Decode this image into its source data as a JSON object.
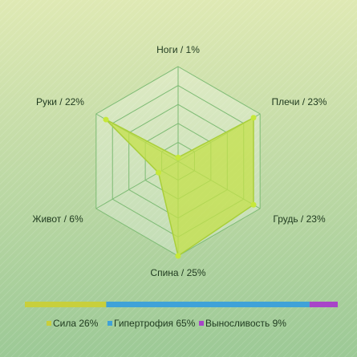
{
  "chart_data": [
    {
      "type": "radar",
      "categories": [
        "Ноги / 1%",
        "Плечи / 23%",
        "Грудь / 23%",
        "Спина / 25%",
        "Живот / 6%",
        "Руки / 22%"
      ],
      "values": [
        1,
        23,
        23,
        25,
        6,
        22
      ],
      "color": "#c4e04a",
      "rlim": [
        0,
        25
      ],
      "rticks": [
        5,
        10,
        15,
        20,
        25
      ],
      "grid": true
    },
    {
      "type": "stacked-hbar",
      "xlim": [
        0,
        100
      ],
      "series": [
        {
          "name": "Сила 26%",
          "color": "#c8cf3c",
          "values": [
            26
          ]
        },
        {
          "name": "Гипертрофия 65%",
          "color": "#3fa2d8",
          "values": [
            65
          ]
        },
        {
          "name": "Выносливость 9%",
          "color": "#a845c8",
          "values": [
            9
          ]
        }
      ]
    }
  ]
}
